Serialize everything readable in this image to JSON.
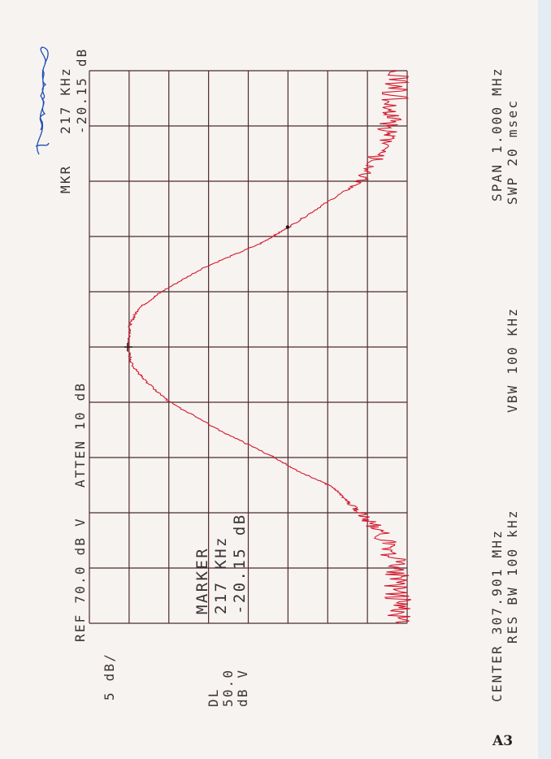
{
  "header": {
    "ref": "REF 70.0 dB V",
    "atten": "ATTEN 10 dB",
    "mkr_label": "MKR",
    "mkr_freq": "217 KHz",
    "mkr_ampl": "-20.15 dB"
  },
  "scale": {
    "per_div": "5 dB/",
    "dl_label": "DL",
    "dl_value": "50.0",
    "dl_unit": "dB V"
  },
  "marker_box": {
    "title": "MARKER",
    "freq": "217 KHz",
    "ampl": "-20.15 dB"
  },
  "footer": {
    "center": "CENTER 307.901 MHz",
    "res_bw": "RES BW 100 kHz",
    "vbw": "VBW 100 KHz",
    "span": "SPAN 1.000 MHz",
    "swp": "SWP 20 msec"
  },
  "page_label": "A3",
  "colors": {
    "trace": "#d3182b",
    "grid": "#4e2c2e",
    "signature": "#1d4fb5",
    "paper": "#f7f3f1"
  },
  "chart_data": {
    "type": "line",
    "orientation": "rotated-90-ccw",
    "xlabel": "",
    "ylabel": "",
    "xlim": [
      307.401,
      308.401
    ],
    "ylim": [
      30,
      70
    ],
    "grid": true,
    "x_divisions": 10,
    "y_divisions": 8,
    "series": [
      {
        "x": [
          307.401,
          307.45,
          307.5,
          307.55,
          307.588,
          307.62,
          307.647,
          307.675,
          307.703,
          307.75,
          307.802,
          307.838,
          307.867,
          307.901,
          307.941,
          307.97,
          308.002,
          308.044,
          308.088,
          308.117,
          308.161,
          308.202,
          308.249,
          308.294,
          308.338,
          308.401
        ],
        "y": [
          31.1,
          31.1,
          31.3,
          32.5,
          34.9,
          37.5,
          39.3,
          43.5,
          47.0,
          53.6,
          60.0,
          62.8,
          64.6,
          65.2,
          64.9,
          63.9,
          60.8,
          55.7,
          48.5,
          45.0,
          40.3,
          35.7,
          33.7,
          32.4,
          31.7,
          31.1
        ]
      }
    ],
    "markers": [
      {
        "type": "peak",
        "x": 307.901,
        "y": 65.2
      },
      {
        "type": "delta",
        "x": 308.118,
        "y": 45.05
      }
    ]
  }
}
